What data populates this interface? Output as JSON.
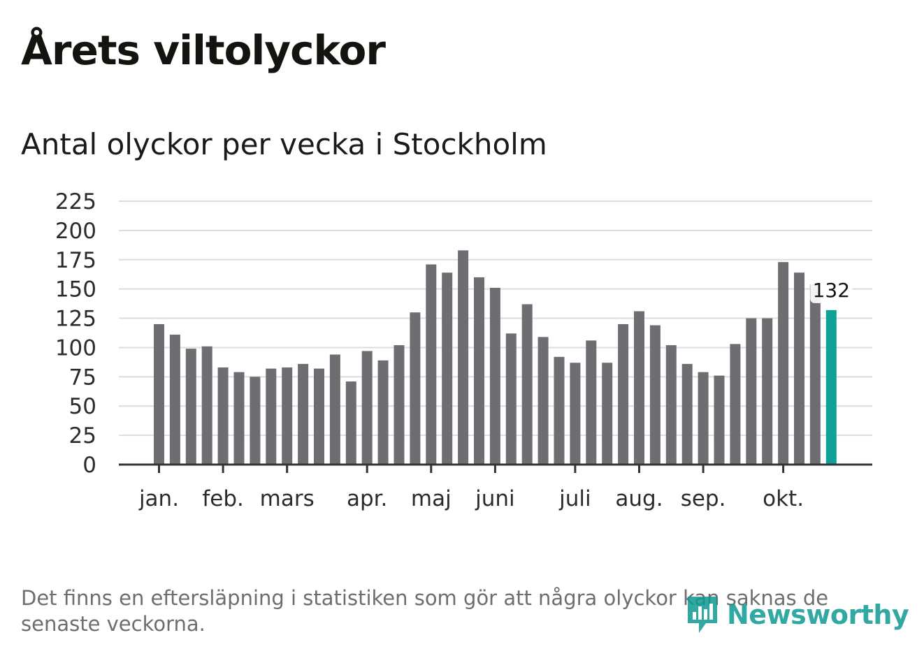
{
  "header": {
    "title": "Årets viltolyckor",
    "subtitle": "Antal olyckor per vecka i Stockholm"
  },
  "footnote": "Det finns en eftersläpning i statistiken som gör att några olyckor kan saknas de senaste veckorna.",
  "logo": {
    "text": "Newsworthy",
    "icon": "newsworthy-logo-icon"
  },
  "colors": {
    "bar": "#6e6d72",
    "highlight": "#0fa098",
    "grid": "#dddddd",
    "axis": "#333333",
    "brand": "#0f9a92"
  },
  "chart_data": {
    "type": "bar",
    "title": "Antal olyckor per vecka i Stockholm",
    "xlabel": "",
    "ylabel": "",
    "ylim": [
      0,
      225
    ],
    "yticks": [
      0,
      25,
      50,
      75,
      100,
      125,
      150,
      175,
      200,
      225
    ],
    "grid": true,
    "week_count": 43,
    "values": [
      120,
      111,
      99,
      101,
      83,
      79,
      75,
      82,
      83,
      86,
      82,
      94,
      71,
      97,
      89,
      102,
      130,
      171,
      164,
      183,
      160,
      151,
      112,
      137,
      109,
      92,
      87,
      106,
      87,
      120,
      131,
      119,
      102,
      86,
      79,
      76,
      103,
      125,
      125,
      173,
      164,
      154,
      132
    ],
    "month_labels": [
      {
        "label": "jan.",
        "week": 1
      },
      {
        "label": "feb.",
        "week": 5
      },
      {
        "label": "mars",
        "week": 9
      },
      {
        "label": "apr.",
        "week": 14
      },
      {
        "label": "maj",
        "week": 18
      },
      {
        "label": "juni",
        "week": 22
      },
      {
        "label": "juli",
        "week": 27
      },
      {
        "label": "aug.",
        "week": 31
      },
      {
        "label": "sep.",
        "week": 35
      },
      {
        "label": "okt.",
        "week": 40
      }
    ],
    "highlight": {
      "week": 43,
      "value": 132,
      "label": "132"
    }
  }
}
